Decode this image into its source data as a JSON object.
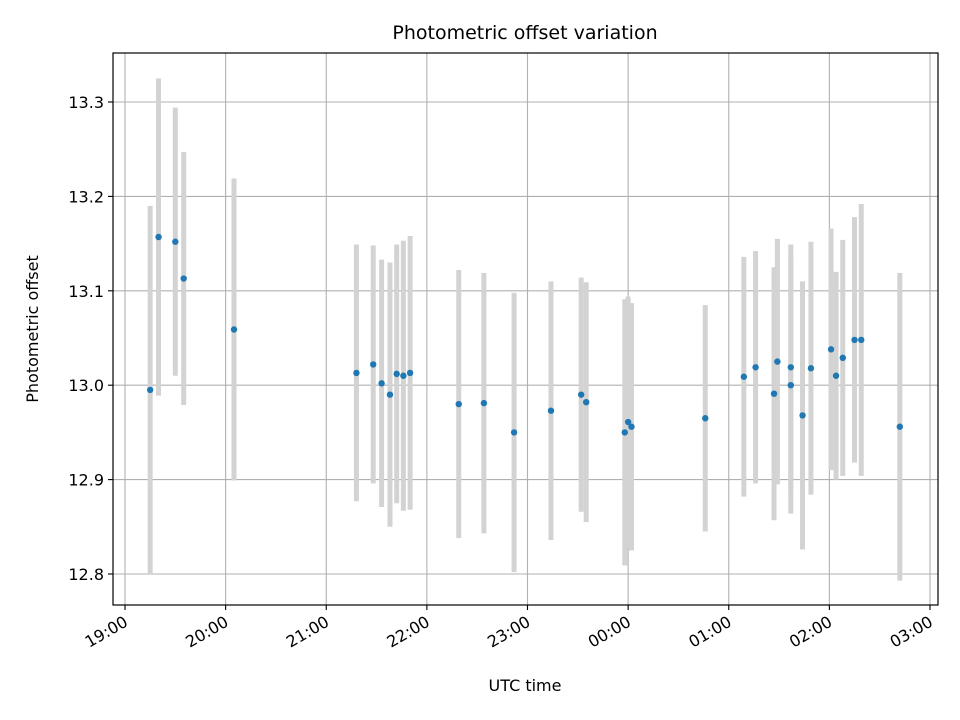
{
  "chart_data": {
    "type": "scatter",
    "title": "Photometric offset variation",
    "xlabel": "UTC time",
    "ylabel": "Photometric offset",
    "ylim": [
      12.767,
      13.353
    ],
    "xlim": [
      "19:00",
      "03:00"
    ],
    "grid": true,
    "legend": "none",
    "xticks": [
      "19:00",
      "20:00",
      "21:00",
      "22:00",
      "23:00",
      "00:00",
      "01:00",
      "02:00",
      "03:00"
    ],
    "yticks": [
      "12.8",
      "12.9",
      "13.0",
      "13.1",
      "13.2",
      "13.3"
    ],
    "series": [
      {
        "points": [
          {
            "x": "19:15",
            "y": 12.995,
            "err": 0.195
          },
          {
            "x": "19:20",
            "y": 13.157,
            "err": 0.168
          },
          {
            "x": "19:30",
            "y": 13.152,
            "err": 0.142
          },
          {
            "x": "19:35",
            "y": 13.113,
            "err": 0.134
          },
          {
            "x": "20:05",
            "y": 13.059,
            "err": 0.16
          },
          {
            "x": "21:18",
            "y": 13.013,
            "err": 0.136
          },
          {
            "x": "21:28",
            "y": 13.022,
            "err": 0.126
          },
          {
            "x": "21:33",
            "y": 13.002,
            "err": 0.131
          },
          {
            "x": "21:38",
            "y": 12.99,
            "err": 0.14
          },
          {
            "x": "21:42",
            "y": 13.012,
            "err": 0.137
          },
          {
            "x": "21:46",
            "y": 13.01,
            "err": 0.143
          },
          {
            "x": "21:50",
            "y": 13.013,
            "err": 0.145
          },
          {
            "x": "22:19",
            "y": 12.98,
            "err": 0.142
          },
          {
            "x": "22:34",
            "y": 12.981,
            "err": 0.138
          },
          {
            "x": "22:52",
            "y": 12.95,
            "err": 0.148
          },
          {
            "x": "23:14",
            "y": 12.973,
            "err": 0.137
          },
          {
            "x": "23:32",
            "y": 12.99,
            "err": 0.124
          },
          {
            "x": "23:35",
            "y": 12.982,
            "err": 0.127
          },
          {
            "x": "23:58",
            "y": 12.95,
            "err": 0.141
          },
          {
            "x": "00:00",
            "y": 12.961,
            "err": 0.133
          },
          {
            "x": "00:02",
            "y": 12.956,
            "err": 0.131
          },
          {
            "x": "00:46",
            "y": 12.965,
            "err": 0.12
          },
          {
            "x": "01:09",
            "y": 13.009,
            "err": 0.127
          },
          {
            "x": "01:16",
            "y": 13.019,
            "err": 0.123
          },
          {
            "x": "01:27",
            "y": 12.991,
            "err": 0.134
          },
          {
            "x": "01:29",
            "y": 13.025,
            "err": 0.13
          },
          {
            "x": "01:37",
            "y": 13.019,
            "err": 0.13
          },
          {
            "x": "01:37",
            "y": 13.0,
            "err": 0.136
          },
          {
            "x": "01:44",
            "y": 12.968,
            "err": 0.142
          },
          {
            "x": "01:49",
            "y": 13.018,
            "err": 0.134
          },
          {
            "x": "02:01",
            "y": 13.038,
            "err": 0.128
          },
          {
            "x": "02:04",
            "y": 13.01,
            "err": 0.11
          },
          {
            "x": "02:08",
            "y": 13.029,
            "err": 0.125
          },
          {
            "x": "02:15",
            "y": 13.048,
            "err": 0.13
          },
          {
            "x": "02:19",
            "y": 13.048,
            "err": 0.144
          },
          {
            "x": "02:42",
            "y": 12.956,
            "err": 0.163
          }
        ],
        "color": "#1f77b4",
        "errorbar_color": "#d3d3d3"
      }
    ]
  }
}
